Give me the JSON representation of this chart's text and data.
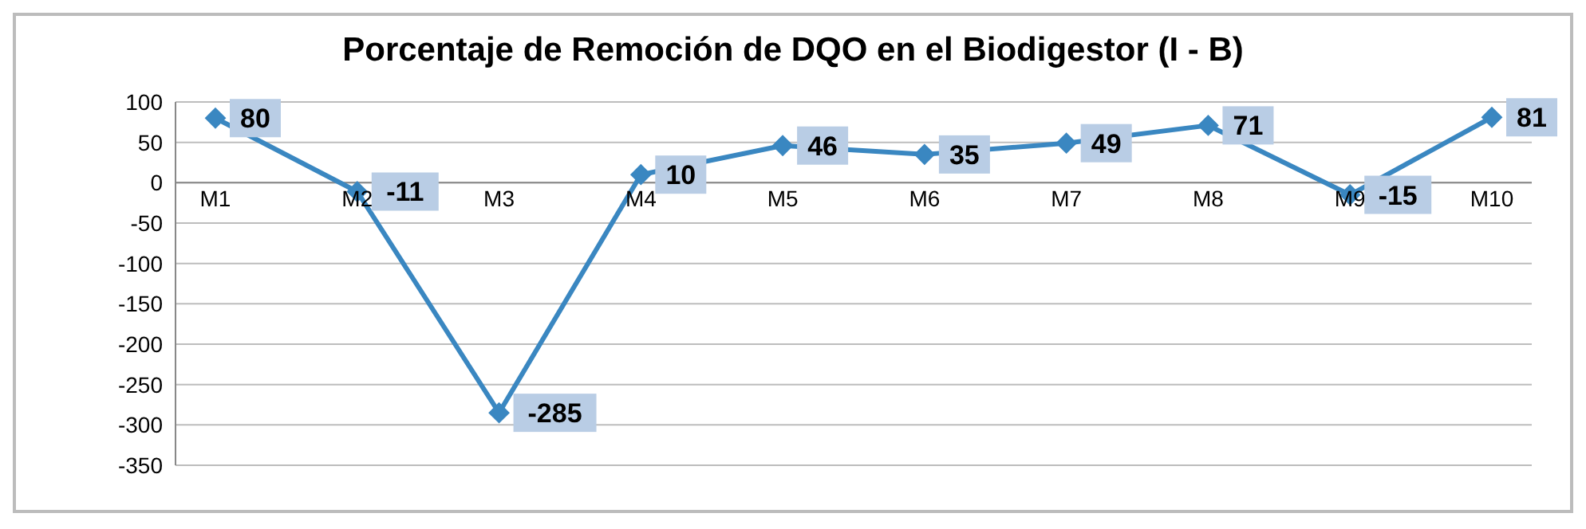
{
  "chart_data": {
    "type": "line",
    "title": "Porcentaje de Remoción de DQO en el Biodigestor (I - B)",
    "categories": [
      "M1",
      "M2",
      "M3",
      "M4",
      "M5",
      "M6",
      "M7",
      "M8",
      "M9",
      "M10"
    ],
    "series": [
      {
        "color": "#3a87c1",
        "values": [
          80,
          -11,
          -285,
          10,
          46,
          35,
          49,
          71,
          -15,
          81
        ]
      }
    ],
    "ylim": [
      -350,
      100
    ],
    "yticks": [
      -350,
      -300,
      -250,
      -200,
      -150,
      -100,
      -50,
      0,
      50,
      100
    ],
    "grid": "y",
    "marker": "diamond",
    "line_style": "solid",
    "data_labels": true
  }
}
